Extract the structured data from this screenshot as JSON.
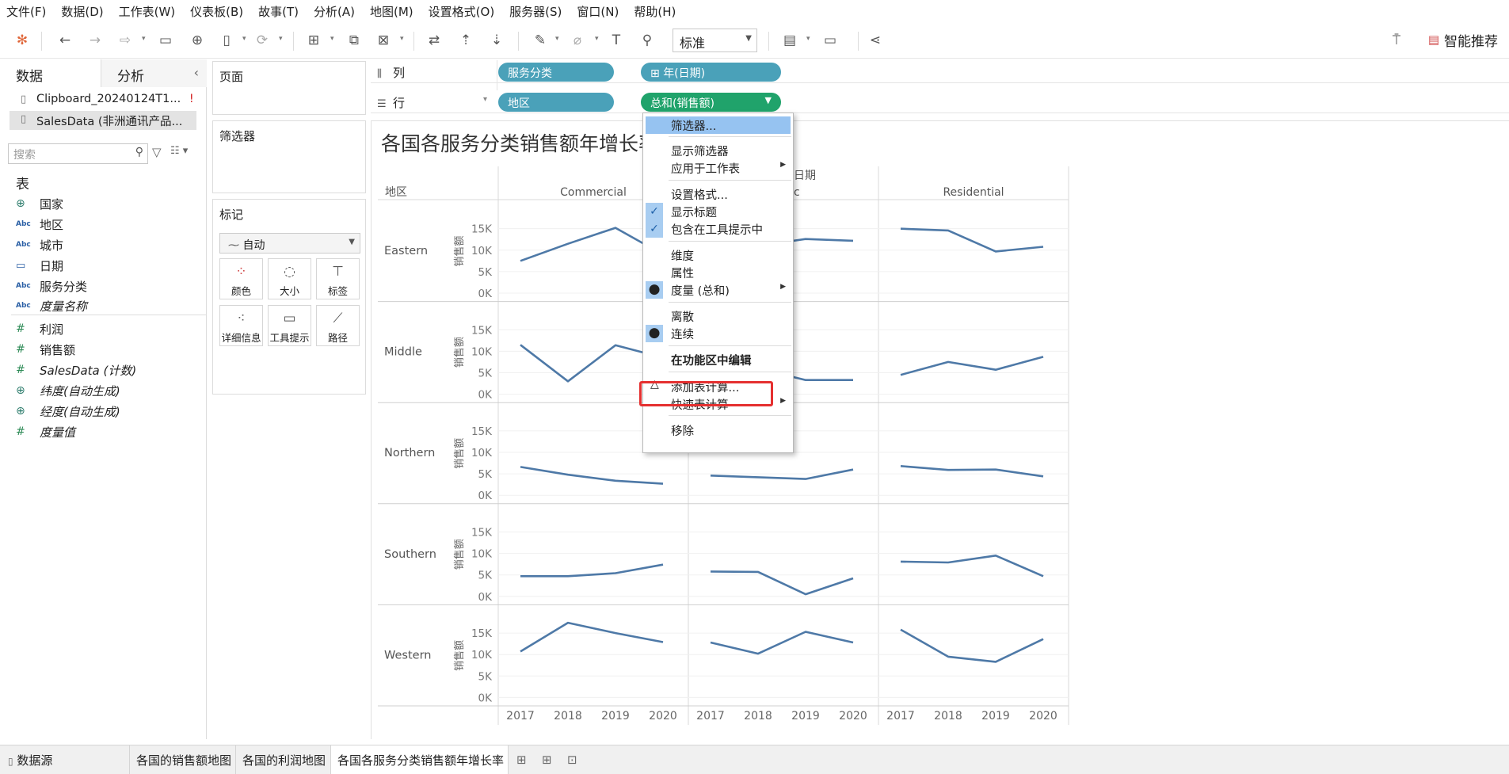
{
  "menu": [
    "文件(F)",
    "数据(D)",
    "工作表(W)",
    "仪表板(B)",
    "故事(T)",
    "分析(A)",
    "地图(M)",
    "设置格式(O)",
    "服务器(S)",
    "窗口(N)",
    "帮助(H)"
  ],
  "toolbar": {
    "fit": "标准",
    "smart_recommend": "智能推荐"
  },
  "left_pane": {
    "tab_data": "数据",
    "tab_analysis": "分析",
    "datasources": [
      "Clipboard_20240124T1...",
      "SalesData (非洲通讯产品..."
    ],
    "warning_mark": "!",
    "search_placeholder": "搜索",
    "tables_title": "表",
    "fields": [
      {
        "label": "国家",
        "type": "geo",
        "italic": false
      },
      {
        "label": "地区",
        "type": "abc",
        "italic": false
      },
      {
        "label": "城市",
        "type": "abc",
        "italic": false
      },
      {
        "label": "日期",
        "type": "date",
        "italic": false
      },
      {
        "label": "服务分类",
        "type": "abc",
        "italic": false
      },
      {
        "label": "度量名称",
        "type": "abc",
        "italic": true
      },
      {
        "label": "利润",
        "type": "num",
        "italic": false
      },
      {
        "label": "销售额",
        "type": "num",
        "italic": false
      },
      {
        "label": "SalesData (计数)",
        "type": "num",
        "italic": true
      },
      {
        "label": "纬度(自动生成)",
        "type": "geo",
        "italic": true
      },
      {
        "label": "经度(自动生成)",
        "type": "geo",
        "italic": true
      },
      {
        "label": "度量值",
        "type": "num",
        "italic": true
      }
    ]
  },
  "cards": {
    "pages": "页面",
    "filters": "筛选器",
    "marks": "标记",
    "marks_type": "自动",
    "mark_buttons": [
      "颜色",
      "大小",
      "标签",
      "详细信息",
      "工具提示",
      "路径"
    ]
  },
  "shelves": {
    "columns_label": "列",
    "rows_label": "行",
    "columns_pills": [
      "服务分类",
      "年(日期)"
    ],
    "rows_pills": [
      "地区",
      "总和(销售额)"
    ],
    "column_date_prefix": "⊞"
  },
  "context_menu": {
    "items": [
      "筛选器...",
      "显示筛选器",
      "应用于工作表",
      "设置格式...",
      "显示标题",
      "包含在工具提示中",
      "维度",
      "属性",
      "度量 (总和)",
      "离散",
      "连续",
      "在功能区中编辑",
      "添加表计算...",
      "快速表计算",
      "移除"
    ]
  },
  "bottom_tabs": {
    "datasource": "数据源",
    "sheets": [
      "各国的销售额地图",
      "各国的利润地图",
      "各国各服务分类销售额年增长率"
    ]
  },
  "chart_data": {
    "type": "line",
    "title": "各国各服务分类销售额年增长率",
    "column_header_label": "日期",
    "row_header_label": "地区",
    "ylabel": "销售额",
    "yticks": [
      "15K",
      "10K",
      "5K",
      "0K"
    ],
    "ylim": [
      0,
      19000
    ],
    "x": [
      "2017",
      "2018",
      "2019",
      "2020"
    ],
    "categories": [
      "Commercial",
      "Public",
      "Residential"
    ],
    "regions": [
      "Eastern",
      "Middle",
      "Northern",
      "Southern",
      "Western"
    ],
    "line_color": "#4e79a7",
    "values": {
      "Eastern": {
        "Commercial": [
          7500,
          11500,
          15200,
          9000
        ],
        "Public": [
          9500,
          11000,
          12600,
          12200
        ],
        "Residential": [
          15000,
          14600,
          9700,
          10800
        ]
      },
      "Middle": {
        "Commercial": [
          11500,
          3000,
          11400,
          8500
        ],
        "Public": [
          8000,
          6000,
          3300,
          3300
        ],
        "Residential": [
          4500,
          7500,
          5700,
          8700
        ]
      },
      "Northern": {
        "Commercial": [
          6600,
          4800,
          3400,
          2700
        ],
        "Public": [
          4600,
          4200,
          3800,
          6000
        ],
        "Residential": [
          6800,
          5900,
          6000,
          4400
        ]
      },
      "Southern": {
        "Commercial": [
          4700,
          4700,
          5400,
          7400
        ],
        "Public": [
          5800,
          5700,
          500,
          4200
        ],
        "Residential": [
          8100,
          7900,
          9500,
          4700
        ]
      },
      "Western": {
        "Commercial": [
          10700,
          17400,
          15000,
          12900
        ],
        "Public": [
          12800,
          10200,
          15300,
          12800
        ],
        "Residential": [
          15800,
          9500,
          8300,
          13600
        ]
      }
    }
  }
}
